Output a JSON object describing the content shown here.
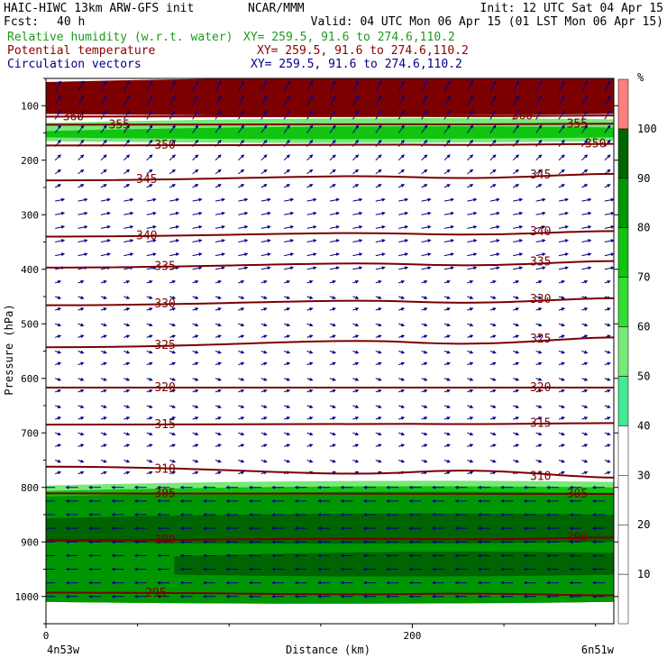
{
  "header": {
    "title": "HAIC-HIWC 13km ARW-GFS init",
    "org": "NCAR/MMM",
    "init": "Init: 12 UTC Sat 04 Apr 15",
    "fcst_label": "Fcst:",
    "fcst_value": "40 h",
    "valid": "Valid: 04 UTC Mon 06 Apr 15 (01 LST Mon 06 Apr 15)",
    "field_rh": "Relative humidity (w.r.t. water)",
    "field_theta": "Potential temperature",
    "field_vec": "Circulation vectors",
    "xy_rh": "XY= 259.5, 91.6 to 274.6,110.2",
    "xy_theta": "XY= 259.5, 91.6 to 274.6,110.2",
    "xy_vec": "XY= 259.5, 91.6 to 274.6,110.2",
    "color_rh": "#1e9a1e",
    "color_theta": "#8b0000",
    "color_vec": "#00008b"
  },
  "chart_data": {
    "type": "cross-section",
    "ylabel": "Pressure (hPa)",
    "xlabel": "Distance (km)",
    "left_endpoint": "4n53w",
    "right_endpoint": "6n51w",
    "xlim": [
      0,
      310
    ],
    "ylim_hPa": [
      1050,
      50
    ],
    "x_ticks": [
      0,
      200
    ],
    "x_minor_ticks": [
      50,
      100,
      150,
      250,
      300
    ],
    "y_ticks": [
      100,
      200,
      300,
      400,
      500,
      600,
      700,
      800,
      900,
      1000
    ],
    "theta_contours": [
      {
        "value": 295,
        "p_left": 993,
        "p_right": 998,
        "labels_x": [
          60
        ]
      },
      {
        "value": 300,
        "p_left": 897,
        "p_right": 892,
        "labels_x": [
          65,
          290
        ]
      },
      {
        "value": 305,
        "p_left": 811,
        "p_right": 812,
        "labels_x": [
          65,
          290
        ]
      },
      {
        "value": 310,
        "p_left": 762,
        "p_right": 782,
        "labels_x": [
          65,
          270
        ]
      },
      {
        "value": 315,
        "p_left": 685,
        "p_right": 682,
        "labels_x": [
          65,
          270
        ]
      },
      {
        "value": 320,
        "p_left": 617,
        "p_right": 617,
        "labels_x": [
          65,
          270
        ]
      },
      {
        "value": 325,
        "p_left": 543,
        "p_right": 525,
        "labels_x": [
          65,
          270
        ]
      },
      {
        "value": 330,
        "p_left": 466,
        "p_right": 453,
        "labels_x": [
          65,
          270
        ]
      },
      {
        "value": 335,
        "p_left": 397,
        "p_right": 385,
        "labels_x": [
          65,
          270
        ]
      },
      {
        "value": 340,
        "p_left": 340,
        "p_right": 330,
        "labels_x": [
          55,
          270
        ]
      },
      {
        "value": 345,
        "p_left": 237,
        "p_right": 225,
        "labels_x": [
          55,
          270
        ]
      },
      {
        "value": 350,
        "p_left": 173,
        "p_right": 170,
        "labels_x": [
          65,
          300
        ]
      },
      {
        "value": 355,
        "p_left": 135,
        "p_right": 133,
        "labels_x": [
          40,
          290
        ]
      },
      {
        "value": 360,
        "p_left": 120,
        "p_right": 118,
        "labels_x": [
          15,
          260
        ]
      }
    ],
    "rh_legend": {
      "unit": "%",
      "levels": [
        10,
        20,
        30,
        40,
        50,
        60,
        70,
        80,
        90,
        100
      ],
      "colors": {
        "50": "#44e996",
        "60": "#78e878",
        "70": "#33dd33",
        "80": "#10c410",
        "90": "#009600",
        "100": "#006400",
        "top": "#ff7f7f"
      }
    },
    "rh_regions": [
      {
        "band": "50-60",
        "p_top": 790,
        "p_bottom": 810
      },
      {
        "band": "70-80",
        "p_top": 800,
        "p_bottom": 1010
      },
      {
        "band": "80-90",
        "p_top": 810,
        "p_bottom": 1010
      },
      {
        "band": "90-100",
        "p_top": 850,
        "p_bottom": 900
      },
      {
        "band": "90-100",
        "p_top": 920,
        "p_bottom": 960
      },
      {
        "band": "50-60",
        "p_top": 125,
        "p_bottom": 165
      },
      {
        "band": "70-80",
        "p_top": 140,
        "p_bottom": 158
      },
      {
        "band": "top-dry",
        "p_top": 50,
        "p_bottom": 115
      }
    ],
    "wind_vectors": {
      "lower_levels": "easterly (pointing left), 800-1000 hPa",
      "mid_levels": "weak westerly (pointing right)",
      "upper_levels": "westerly with upward component, 100-250 hPa"
    }
  }
}
